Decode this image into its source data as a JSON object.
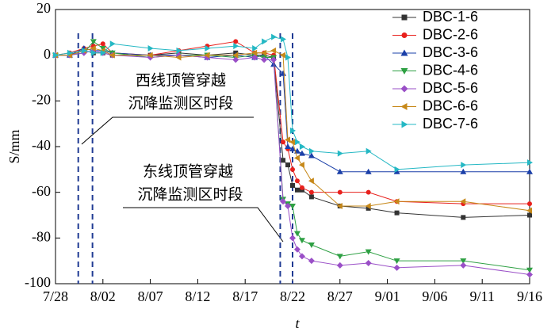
{
  "chart_data": {
    "type": "line",
    "x_label": "t",
    "y_label": "S/mm",
    "x": [
      0,
      1.5,
      3,
      4,
      5,
      6,
      10,
      13,
      16,
      19,
      21,
      22,
      23,
      24,
      24.5,
      25,
      25.5,
      26,
      27,
      30,
      33,
      36,
      43,
      50
    ],
    "xlim": [
      0,
      50
    ],
    "xticks": [
      {
        "value": 0,
        "label": "7/28"
      },
      {
        "value": 5,
        "label": "8/02"
      },
      {
        "value": 10,
        "label": "8/07"
      },
      {
        "value": 15,
        "label": "8/12"
      },
      {
        "value": 20,
        "label": "8/17"
      },
      {
        "value": 25,
        "label": "8/22"
      },
      {
        "value": 30,
        "label": "8/27"
      },
      {
        "value": 35,
        "label": "9/01"
      },
      {
        "value": 40,
        "label": "9/06"
      },
      {
        "value": 45,
        "label": "9/11"
      },
      {
        "value": 50,
        "label": "9/16"
      }
    ],
    "ylim": [
      -100,
      20
    ],
    "yticks": [
      -100,
      -80,
      -60,
      -40,
      -20,
      0,
      20
    ],
    "spans": [
      [
        2.4,
        3.9
      ],
      [
        23.7,
        25
      ]
    ],
    "annotations": [
      [
        "西线顶管穿越",
        "沉降监测区时段"
      ],
      [
        "东线顶管穿越",
        "沉降监测区时段"
      ]
    ],
    "series": [
      {
        "name": "DBC-1-6",
        "color": "#333333",
        "marker": "square",
        "values": [
          0,
          0,
          2,
          1,
          1,
          0,
          0,
          1,
          0,
          1,
          0,
          0,
          -1,
          -46,
          -48,
          -57,
          -59,
          -59,
          -62,
          -66,
          -67,
          -69,
          -71,
          -70
        ]
      },
      {
        "name": "DBC-2-6",
        "color": "#e8211d",
        "marker": "circle",
        "values": [
          0,
          1,
          3,
          4,
          5,
          1,
          0,
          2,
          4,
          6,
          1,
          1,
          0,
          -38,
          -41,
          -50,
          -55,
          -58,
          -60,
          -60,
          -60,
          -64,
          -65,
          -65
        ]
      },
      {
        "name": "DBC-3-6",
        "color": "#1a3fa8",
        "marker": "triangle-up",
        "values": [
          0,
          0,
          3,
          2,
          2,
          1,
          0,
          0,
          -1,
          0,
          -1,
          0,
          -4,
          -8,
          -40,
          -41,
          -42,
          -43,
          -44,
          -51,
          -51,
          -51,
          -51,
          -51
        ]
      },
      {
        "name": "DBC-4-6",
        "color": "#2ea043",
        "marker": "triangle-down",
        "values": [
          0,
          0,
          1,
          6,
          3,
          1,
          -1,
          0,
          0,
          -1,
          0,
          -1,
          -1,
          -63,
          -65,
          -66,
          -78,
          -81,
          -83,
          -88,
          -86,
          -90,
          -90,
          -94
        ]
      },
      {
        "name": "DBC-5-6",
        "color": "#9a4fc7",
        "marker": "diamond",
        "values": [
          0,
          0,
          1,
          2,
          1,
          0,
          -1,
          0,
          -1,
          -2,
          -1,
          -2,
          -2,
          -64,
          -66,
          -80,
          -85,
          -88,
          -90,
          -92,
          -91,
          -93,
          -92,
          -96
        ]
      },
      {
        "name": "DBC-6-6",
        "color": "#c7891a",
        "marker": "triangle-left",
        "values": [
          0,
          0,
          2,
          3,
          2,
          0,
          0,
          -1,
          0,
          0,
          1,
          1,
          2,
          0,
          -37,
          -38,
          -45,
          -48,
          -55,
          -66,
          -66,
          -64,
          -64,
          -68
        ]
      },
      {
        "name": "DBC-7-6",
        "color": "#25b8c4",
        "marker": "triangle-right",
        "values": [
          0,
          1,
          2,
          1,
          1,
          5,
          3,
          2,
          3,
          4,
          3,
          6,
          8,
          7,
          -1,
          -33,
          -38,
          -40,
          -42,
          -43,
          -42,
          -50,
          -48,
          -47
        ]
      }
    ]
  }
}
